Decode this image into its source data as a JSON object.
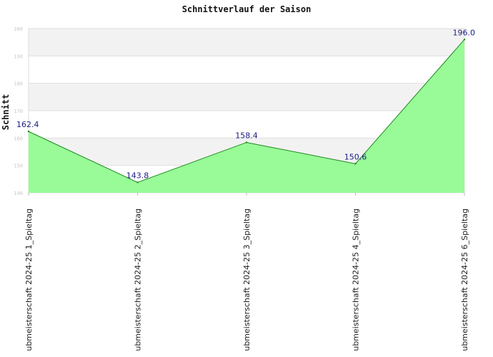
{
  "chart_data": {
    "type": "area",
    "title": "Schnittverlauf der Saison",
    "xlabel": "",
    "ylabel": "Schnitt",
    "ylim": [
      140,
      200
    ],
    "yticks": [
      140,
      150,
      160,
      170,
      180,
      190,
      200
    ],
    "categories": [
      "ubmeisterschaft 2024-25  1_Spieltag",
      "ubmeisterschaft 2024-25  2_Spieltag",
      "ubmeisterschaft 2024-25  3_Spieltag",
      "ubmeisterschaft 2024-25  4_Spieltag",
      "ubmeisterschaft 2024-25  6_Spieltag"
    ],
    "values": [
      162.4,
      143.8,
      158.4,
      150.6,
      196.0
    ],
    "data_labels": [
      "162.4",
      "143.8",
      "158.4",
      "150.6",
      "196.0"
    ],
    "grid": true,
    "colors": {
      "fill": "#98fb98",
      "line": "#1a8a1a",
      "band": "#f2f2f2",
      "grid": "#e0e0e0"
    }
  }
}
